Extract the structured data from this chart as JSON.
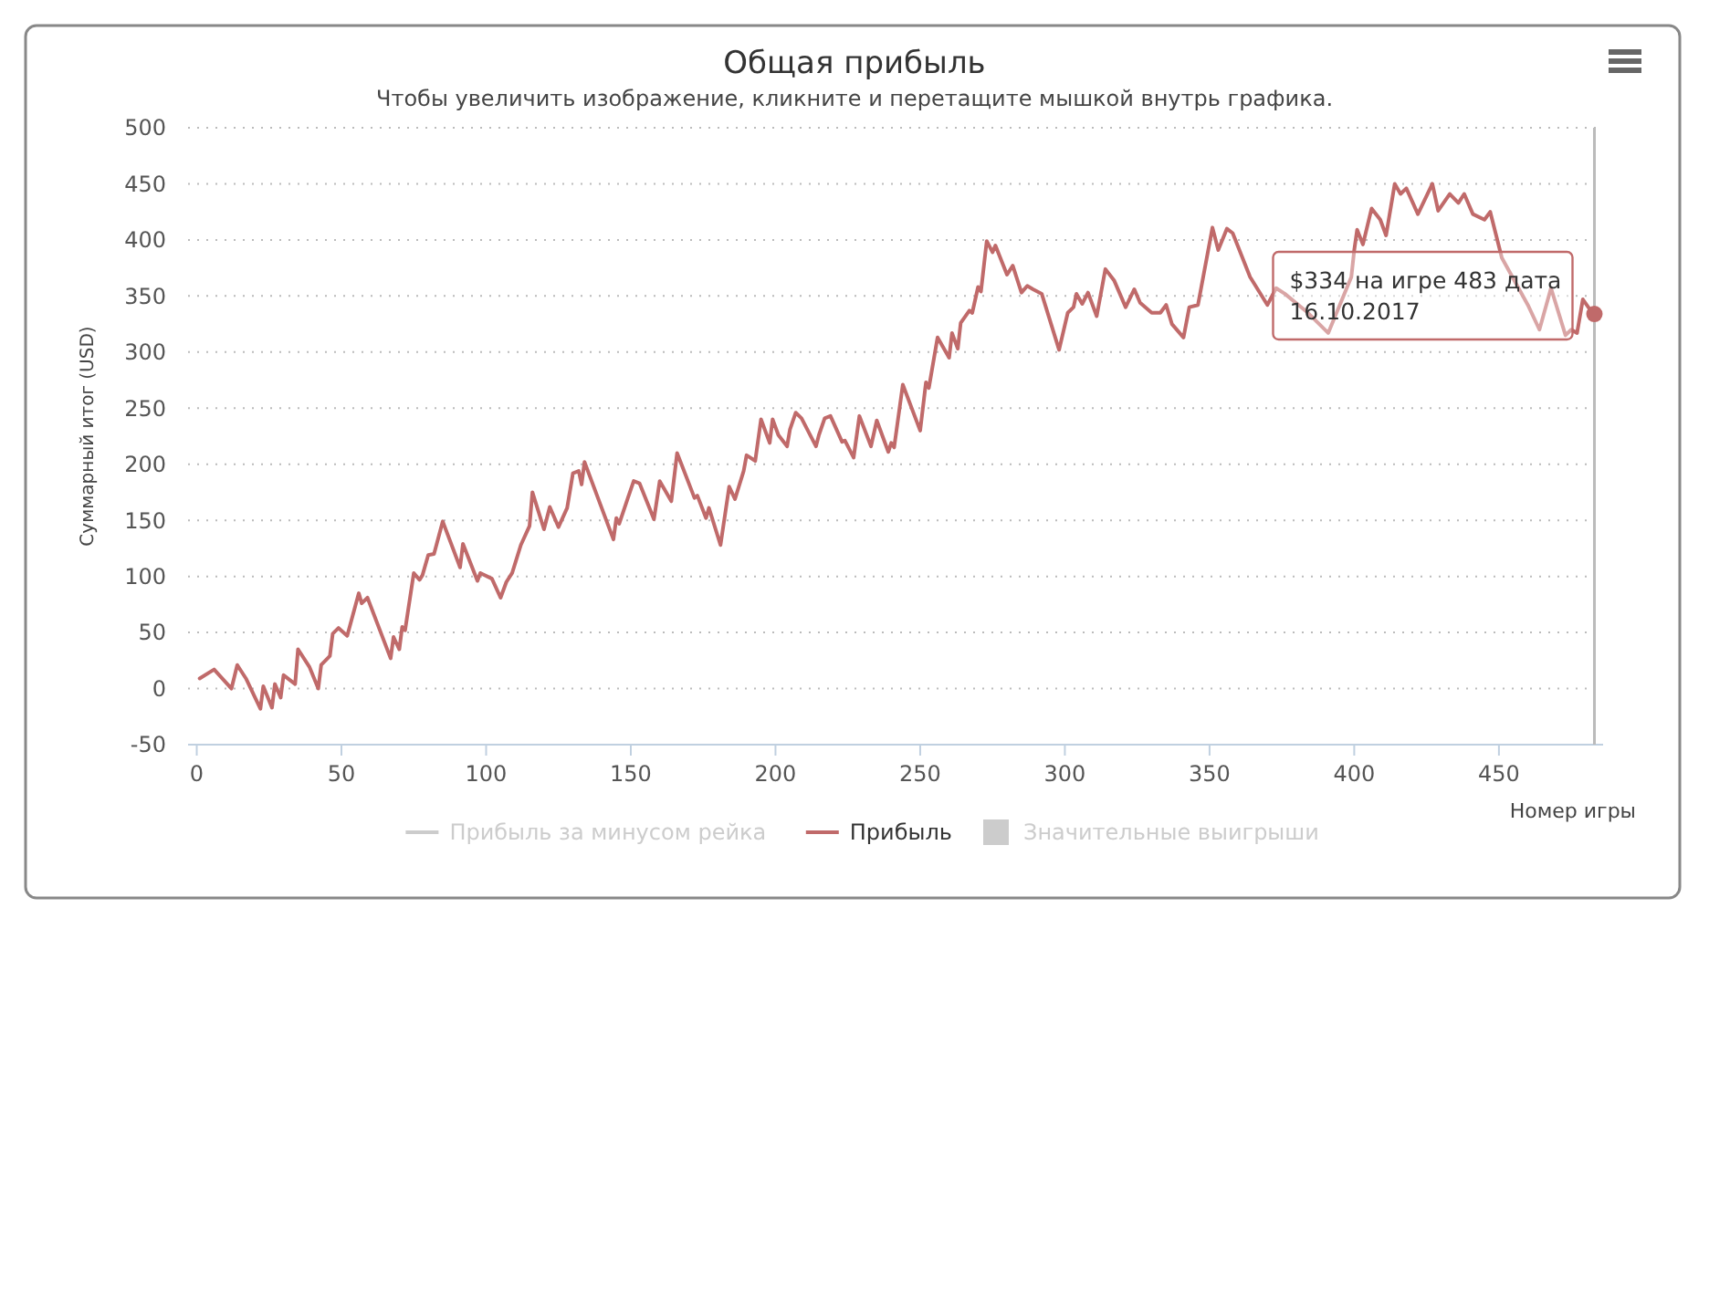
{
  "chart_data": {
    "type": "line",
    "title": "Общая прибыль",
    "subtitle": "Чтобы увеличить изображение, кликните и перетащите мышкой внутрь графика.",
    "xlabel": "Номер игры",
    "ylabel": "Суммарный итог (USD)",
    "xlim": [
      -3,
      486
    ],
    "xticks": [
      0,
      50,
      100,
      150,
      200,
      250,
      300,
      350,
      400,
      450
    ],
    "ylim": [
      -50,
      500
    ],
    "yticks": [
      -50,
      0,
      50,
      100,
      150,
      200,
      250,
      300,
      350,
      400,
      450,
      500
    ],
    "grid": "y",
    "legend": "bottom",
    "line_style": "solid",
    "ref_lines": [
      {
        "axis": "x",
        "value": 483,
        "color": "#bbbbbb"
      }
    ],
    "annotations": [
      {
        "text": "$334 на игре 483 дата 16.10.2017",
        "x": 483,
        "y": 334
      }
    ],
    "series": [
      {
        "name": "Прибыль за минусом рейка",
        "color": "#cccccc",
        "type": "line"
      },
      {
        "name": "Прибыль",
        "color": "#c06a6a",
        "x": [
          1,
          6,
          12,
          14,
          17,
          22,
          23,
          26,
          27,
          29,
          30,
          34,
          35,
          39,
          42,
          43,
          46,
          47,
          49,
          52,
          56,
          57,
          59,
          67,
          68,
          70,
          71,
          72,
          75,
          77,
          78,
          80,
          82,
          85,
          91,
          92,
          97,
          98,
          102,
          105,
          107,
          109,
          112,
          115,
          116,
          120,
          122,
          125,
          128,
          130,
          132,
          133,
          134,
          144,
          145,
          146,
          149,
          151,
          153,
          158,
          160,
          164,
          166,
          172,
          173,
          176,
          177,
          181,
          184,
          186,
          189,
          190,
          193,
          195,
          198,
          199,
          201,
          204,
          205,
          207,
          209,
          214,
          215,
          217,
          219,
          223,
          224,
          227,
          229,
          233,
          235,
          239,
          240,
          241,
          244,
          250,
          252,
          253,
          256,
          260,
          261,
          263,
          264,
          267,
          268,
          270,
          271,
          273,
          275,
          276,
          280,
          282,
          285,
          287,
          289,
          292,
          298,
          301,
          303,
          304,
          306,
          308,
          311,
          314,
          317,
          321,
          324,
          326,
          330,
          333,
          335,
          337,
          341,
          343,
          346,
          351,
          353,
          356,
          358,
          364,
          370,
          373,
          376,
          384,
          391,
          399,
          400,
          401,
          403,
          406,
          409,
          411,
          414,
          416,
          418,
          422,
          427,
          429,
          433,
          436,
          438,
          441,
          445,
          447,
          451,
          460,
          464,
          468,
          473,
          475,
          477,
          479,
          482,
          483
        ],
        "values": [
          9,
          17,
          0,
          21,
          9,
          -18,
          2,
          -17,
          4,
          -8,
          12,
          4,
          35,
          19,
          0,
          21,
          29,
          49,
          54,
          47,
          85,
          76,
          81,
          27,
          46,
          35,
          55,
          52,
          103,
          97,
          101,
          119,
          120,
          149,
          108,
          129,
          96,
          103,
          98,
          81,
          95,
          103,
          128,
          145,
          175,
          142,
          162,
          144,
          161,
          192,
          194,
          182,
          202,
          133,
          152,
          147,
          170,
          185,
          183,
          151,
          185,
          167,
          210,
          170,
          172,
          152,
          161,
          128,
          180,
          169,
          194,
          208,
          203,
          240,
          219,
          240,
          226,
          216,
          231,
          246,
          241,
          216,
          226,
          241,
          243,
          220,
          221,
          206,
          243,
          216,
          239,
          211,
          219,
          215,
          271,
          230,
          273,
          268,
          313,
          295,
          317,
          303,
          326,
          337,
          335,
          358,
          354,
          399,
          389,
          395,
          369,
          377,
          353,
          359,
          356,
          352,
          302,
          335,
          340,
          352,
          343,
          353,
          332,
          374,
          364,
          340,
          356,
          344,
          335,
          335,
          342,
          325,
          313,
          340,
          342,
          411,
          391,
          410,
          406,
          367,
          342,
          357,
          352,
          335,
          317,
          367,
          391,
          409,
          396,
          428,
          418,
          404,
          450,
          441,
          446,
          423,
          450,
          426,
          441,
          433,
          441,
          423,
          418,
          425,
          384,
          342,
          320,
          357,
          315,
          320,
          317,
          347,
          336,
          334
        ]
      },
      {
        "name": "Значительные выигрыши",
        "color": "#cccccc",
        "type": "bar"
      }
    ]
  }
}
